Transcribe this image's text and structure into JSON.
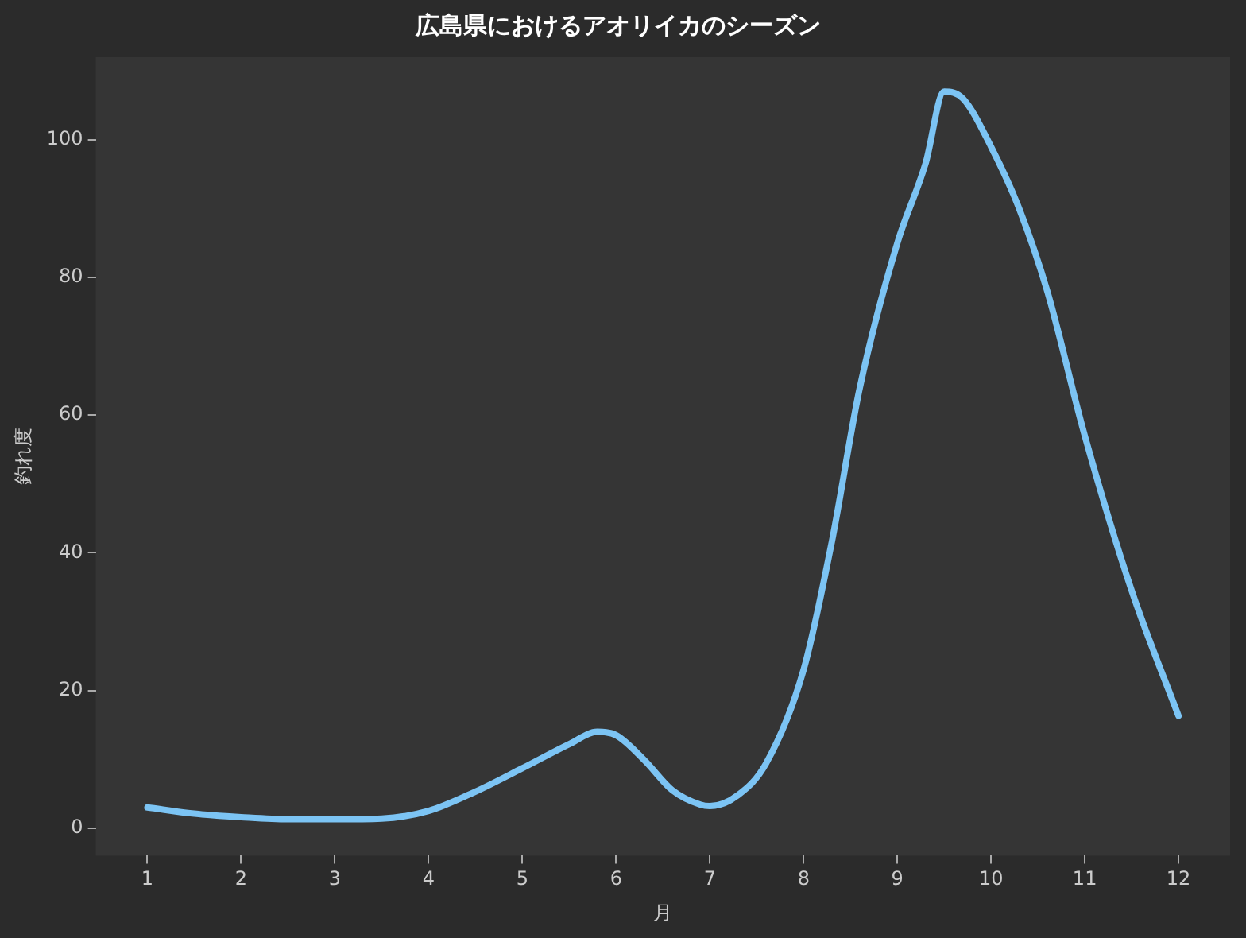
{
  "chart_data": {
    "type": "line",
    "title": "広島県におけるアオリイカのシーズン",
    "xlabel": "月",
    "ylabel": "釣れ度",
    "x": [
      1,
      1.5,
      2,
      2.5,
      3,
      3.5,
      4,
      4.5,
      5,
      5.5,
      5.8,
      6,
      6.3,
      6.6,
      6.9,
      7,
      7.3,
      7.6,
      8,
      8.3,
      8.6,
      9,
      9.3,
      9.5,
      9.7,
      10,
      10.3,
      10.6,
      11,
      11.5,
      12
    ],
    "series": [
      {
        "color": "#7cc4f4",
        "values": [
          3,
          2.1,
          1.6,
          1.3,
          1.3,
          1.4,
          2.5,
          5.3,
          8.7,
          12.2,
          14,
          13.5,
          9.9,
          5.5,
          3.4,
          3.2,
          4.8,
          9.4,
          23,
          41.5,
          64,
          85,
          96.5,
          107,
          106,
          99,
          90,
          78,
          57,
          34.5,
          16.3
        ]
      }
    ],
    "xlim": [
      0.45,
      12.55
    ],
    "xticks": [
      1,
      2,
      3,
      4,
      5,
      6,
      7,
      8,
      9,
      10,
      11,
      12
    ],
    "ylim": [
      -4,
      112
    ],
    "yticks": [
      0,
      20,
      40,
      60,
      80,
      100
    ],
    "grid": false,
    "legend": false,
    "marker": "none",
    "line_style": "solid"
  }
}
